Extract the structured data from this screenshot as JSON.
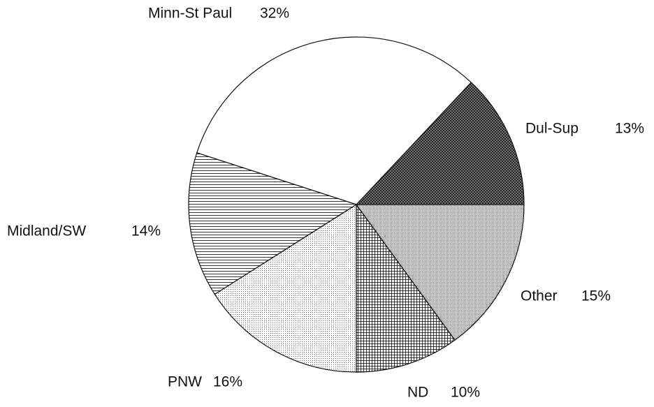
{
  "chart_data": {
    "type": "pie",
    "categories": [
      "Dul-Sup",
      "Minn-St Paul",
      "Midland/SW",
      "PNW",
      "ND",
      "Other"
    ],
    "values": [
      13,
      32,
      14,
      16,
      10,
      15
    ],
    "value_labels": [
      "13%",
      "32%",
      "14%",
      "16%",
      "10%",
      "15%"
    ],
    "colors": [
      "#222222",
      "#ffffff",
      "#333333",
      "#666666",
      "#333333",
      "#555555"
    ],
    "start_angle": 0,
    "direction": "counterclockwise"
  }
}
